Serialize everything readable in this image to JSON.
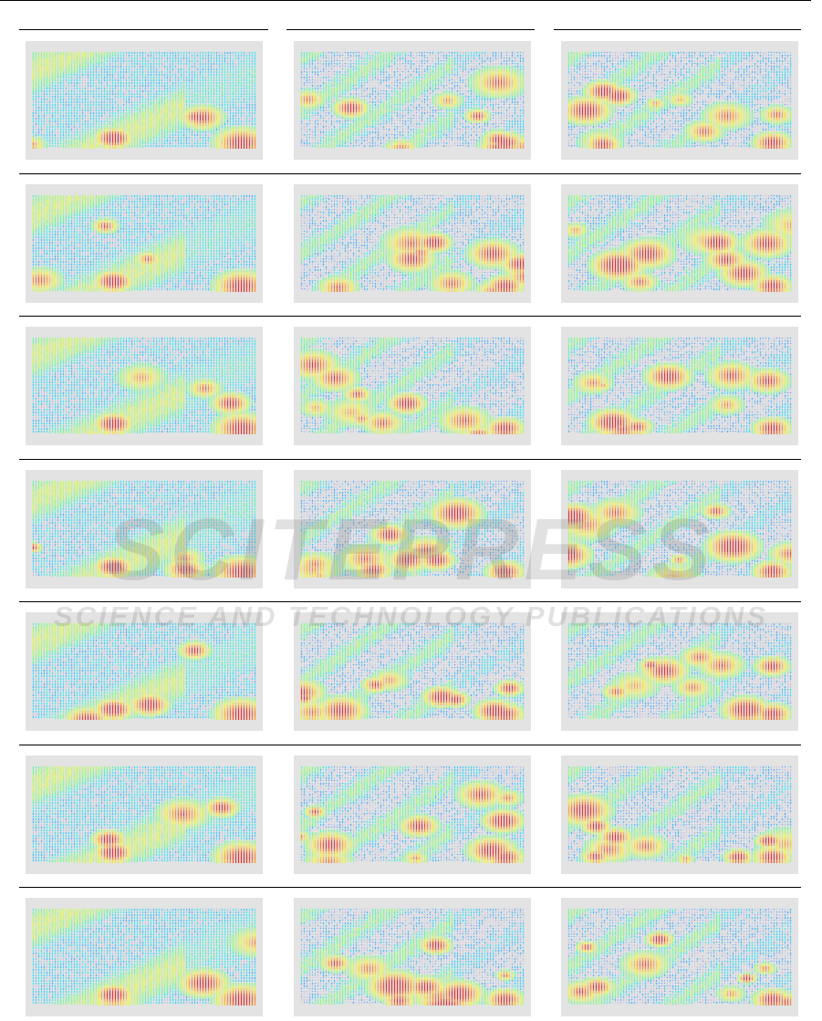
{
  "figure": {
    "rows": 7,
    "columns": 3,
    "panel_type": "vector-field-visualization",
    "colormap": [
      "#1f3cff",
      "#00e5ff",
      "#7dff6a",
      "#ffff00",
      "#ff7a00",
      "#d40000"
    ]
  },
  "watermark": {
    "title": "SCITEPRESS",
    "subtitle": "SCIENCE AND TECHNOLOGY PUBLICATIONS"
  }
}
